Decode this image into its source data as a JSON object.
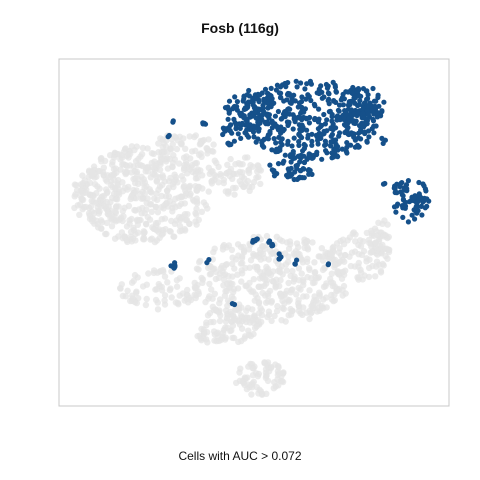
{
  "chart_data": {
    "type": "scatter",
    "title": "Fosb (116g)",
    "xlabel": "",
    "ylabel": "",
    "caption": "Cells with AUC > 0.072",
    "grid": false,
    "legend": "none",
    "colors": {
      "active": "#15508a",
      "inactive": "#e4e4e4",
      "frame": "#c8c8c8"
    },
    "series": [
      {
        "name": "",
        "role": "inactive",
        "regions": [
          {
            "cx": 145,
            "cy": 195,
            "rx": 65,
            "ry": 50,
            "n": 420
          },
          {
            "cx": 95,
            "cy": 200,
            "rx": 25,
            "ry": 30,
            "n": 60
          },
          {
            "cx": 185,
            "cy": 148,
            "rx": 30,
            "ry": 18,
            "n": 60
          },
          {
            "cx": 235,
            "cy": 175,
            "rx": 30,
            "ry": 20,
            "n": 70
          },
          {
            "cx": 270,
            "cy": 280,
            "rx": 80,
            "ry": 45,
            "n": 400
          },
          {
            "cx": 160,
            "cy": 290,
            "rx": 40,
            "ry": 20,
            "n": 70
          },
          {
            "cx": 230,
            "cy": 325,
            "rx": 30,
            "ry": 18,
            "n": 60
          },
          {
            "cx": 360,
            "cy": 255,
            "rx": 30,
            "ry": 25,
            "n": 90
          },
          {
            "cx": 380,
            "cy": 240,
            "rx": 12,
            "ry": 22,
            "n": 30
          },
          {
            "cx": 260,
            "cy": 378,
            "rx": 25,
            "ry": 18,
            "n": 70
          },
          {
            "cx": 210,
            "cy": 335,
            "rx": 15,
            "ry": 8,
            "n": 20
          }
        ]
      },
      {
        "name": "",
        "role": "active",
        "regions": [
          {
            "cx": 310,
            "cy": 120,
            "rx": 70,
            "ry": 40,
            "n": 420
          },
          {
            "cx": 250,
            "cy": 110,
            "rx": 25,
            "ry": 20,
            "n": 70
          },
          {
            "cx": 360,
            "cy": 105,
            "rx": 25,
            "ry": 20,
            "n": 70
          },
          {
            "cx": 410,
            "cy": 200,
            "rx": 20,
            "ry": 22,
            "n": 70
          },
          {
            "cx": 235,
            "cy": 135,
            "rx": 15,
            "ry": 12,
            "n": 25
          },
          {
            "cx": 290,
            "cy": 170,
            "rx": 25,
            "ry": 10,
            "n": 40
          },
          {
            "cx": 255,
            "cy": 240,
            "rx": 6,
            "ry": 3,
            "n": 6
          },
          {
            "cx": 270,
            "cy": 245,
            "rx": 4,
            "ry": 4,
            "n": 5
          },
          {
            "cx": 280,
            "cy": 256,
            "rx": 3,
            "ry": 4,
            "n": 4
          },
          {
            "cx": 295,
            "cy": 262,
            "rx": 3,
            "ry": 3,
            "n": 3
          },
          {
            "cx": 174,
            "cy": 266,
            "rx": 3,
            "ry": 5,
            "n": 6
          },
          {
            "cx": 208,
            "cy": 261,
            "rx": 2,
            "ry": 2,
            "n": 2
          },
          {
            "cx": 234,
            "cy": 304,
            "rx": 2,
            "ry": 2,
            "n": 2
          },
          {
            "cx": 329,
            "cy": 265,
            "rx": 2,
            "ry": 2,
            "n": 2
          },
          {
            "cx": 172,
            "cy": 122,
            "rx": 2,
            "ry": 2,
            "n": 2
          },
          {
            "cx": 168,
            "cy": 135,
            "rx": 2,
            "ry": 2,
            "n": 2
          },
          {
            "cx": 203,
            "cy": 125,
            "rx": 4,
            "ry": 3,
            "n": 4
          },
          {
            "cx": 385,
            "cy": 185,
            "rx": 3,
            "ry": 3,
            "n": 2
          },
          {
            "cx": 383,
            "cy": 142,
            "rx": 4,
            "ry": 4,
            "n": 3
          }
        ]
      }
    ]
  }
}
